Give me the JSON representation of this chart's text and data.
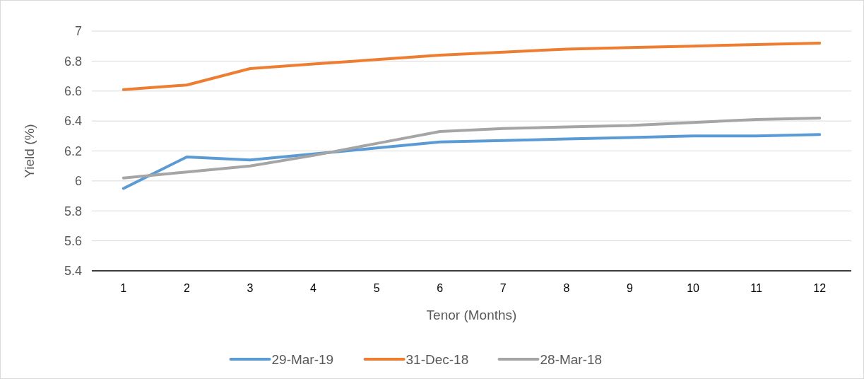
{
  "chart_data": {
    "type": "line",
    "xlabel": "Tenor (Months)",
    "ylabel": "Yield (%)",
    "x": [
      1,
      2,
      3,
      4,
      5,
      6,
      7,
      8,
      9,
      10,
      11,
      12
    ],
    "xlim": [
      0.5,
      12.5
    ],
    "xticks": [
      1,
      2,
      3,
      4,
      5,
      6,
      7,
      8,
      9,
      10,
      11,
      12
    ],
    "series": [
      {
        "name": "29-Mar-19",
        "color": "#5b9bd5",
        "values": [
          5.95,
          6.16,
          6.14,
          6.18,
          6.22,
          6.26,
          6.27,
          6.28,
          6.29,
          6.3,
          6.3,
          6.31
        ]
      },
      {
        "name": "31-Dec-18",
        "color": "#ed7d31",
        "values": [
          6.61,
          6.64,
          6.75,
          6.78,
          6.81,
          6.84,
          6.86,
          6.88,
          6.89,
          6.9,
          6.91,
          6.92
        ]
      },
      {
        "name": "28-Mar-18",
        "color": "#a5a5a5",
        "values": [
          6.02,
          6.06,
          6.1,
          6.17,
          6.25,
          6.33,
          6.35,
          6.36,
          6.37,
          6.39,
          6.41,
          6.42
        ]
      }
    ],
    "ylim": [
      5.4,
      7
    ],
    "yticks": [
      5.4,
      5.6,
      5.8,
      6,
      6.2,
      6.4,
      6.6,
      6.8,
      7
    ],
    "grid": "y",
    "legend": "bottom",
    "marker": "none",
    "line_style": "solid"
  }
}
